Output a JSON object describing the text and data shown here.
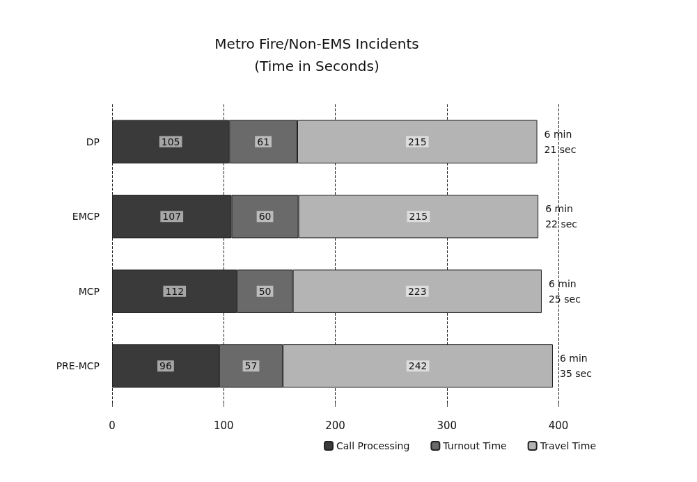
{
  "chart_data": {
    "type": "bar",
    "title": "Metro Fire/Non-EMS Incidents\n(Time in Seconds)",
    "orientation": "horizontal",
    "stacked": true,
    "categories": [
      "DP",
      "EMCP",
      "MCP",
      "PRE-MCP"
    ],
    "series": [
      {
        "name": "Call Processing",
        "color": "#3a3a3a",
        "values": [
          105,
          107,
          112,
          96
        ]
      },
      {
        "name": "Turnout Time",
        "color": "#6a6a6a",
        "values": [
          61,
          60,
          50,
          57
        ]
      },
      {
        "name": "Travel Time",
        "color": "#b4b4b4",
        "values": [
          215,
          215,
          223,
          242
        ]
      }
    ],
    "xlim": [
      0,
      400
    ],
    "xticks": [
      0,
      100,
      200,
      300,
      400
    ],
    "grid": "x",
    "legend": "bottom",
    "data_labels": true,
    "totals": [
      "6 min\n21 sec",
      "6 min\n22 sec",
      "6 min\n25 sec",
      "6 min\n35 sec"
    ]
  }
}
